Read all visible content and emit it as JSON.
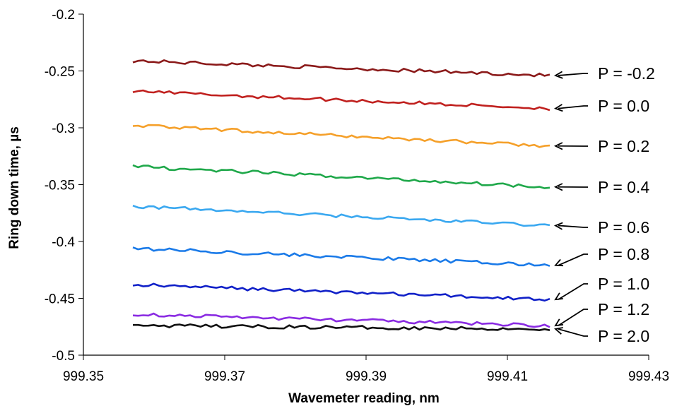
{
  "chart_data": {
    "type": "line",
    "title": "",
    "xlabel": "Wavemeter reading, nm",
    "ylabel": "Ring down time, µs",
    "xlim": [
      999.35,
      999.43
    ],
    "ylim": [
      -0.5,
      -0.2
    ],
    "x_ticks": [
      "999.35",
      "999.37",
      "999.39",
      "999.41",
      "999.43"
    ],
    "y_ticks": [
      "-0.5",
      "-0.45",
      "-0.4",
      "-0.35",
      "-0.3",
      "-0.25",
      "-0.2"
    ],
    "x_range": [
      999.357,
      999.416
    ],
    "grid": false,
    "legend": "none",
    "series": [
      {
        "name": "P = -0.2",
        "color": "#8b1a1a",
        "start": -0.241,
        "end": -0.254
      },
      {
        "name": "P = 0.0",
        "color": "#c0201e",
        "start": -0.268,
        "end": -0.283
      },
      {
        "name": "P = 0.2",
        "color": "#f5a02a",
        "start": -0.298,
        "end": -0.316
      },
      {
        "name": "P = 0.4",
        "color": "#1fa84a",
        "start": -0.334,
        "end": -0.352
      },
      {
        "name": "P = 0.6",
        "color": "#3aa8f0",
        "start": -0.369,
        "end": -0.386
      },
      {
        "name": "P = 0.8",
        "color": "#1a7ae8",
        "start": -0.406,
        "end": -0.421
      },
      {
        "name": "P = 1.0",
        "color": "#1020c8",
        "start": -0.438,
        "end": -0.451
      },
      {
        "name": "P = 1.2",
        "color": "#8a2be2",
        "start": -0.464,
        "end": -0.474
      },
      {
        "name": "P = 2.0",
        "color": "#111111",
        "start": -0.474,
        "end": -0.477
      }
    ],
    "annotations": [
      "P = -0.2",
      "P = 0.0",
      "P = 0.2",
      "P = 0.4",
      "P = 0.6",
      "P = 0.8",
      "P = 1.0",
      "P = 1.2",
      "P = 2.0"
    ]
  }
}
